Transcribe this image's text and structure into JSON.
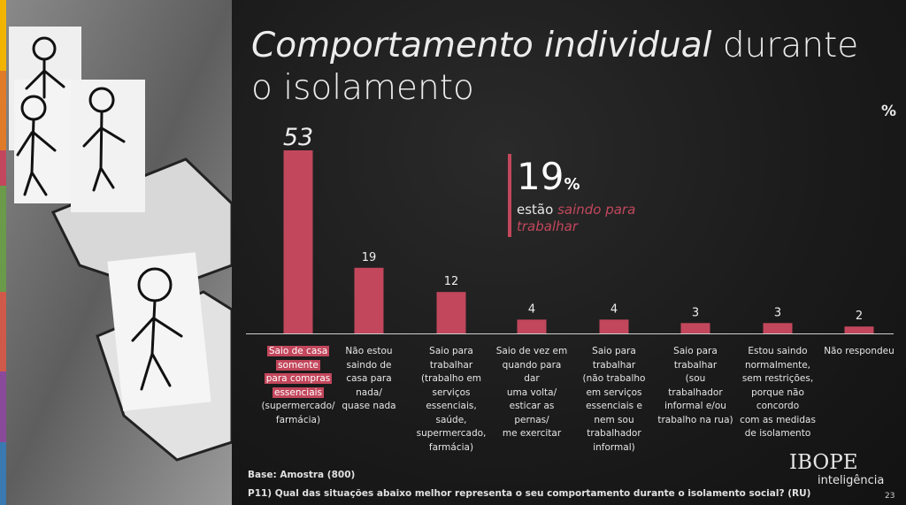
{
  "title": {
    "italic": "Comportamento individual",
    "rest": " durante o isolamento"
  },
  "unit_label": "%",
  "callout": {
    "value": "19",
    "unit": "%",
    "text_prefix": "estão ",
    "text_highlight": "saindo para trabalhar"
  },
  "base": "Base: Amostra (800)",
  "question": "P11) Qual das situações abaixo melhor representa o seu comportamento durante o isolamento social? (RU)",
  "logo": {
    "brand": "IBOPE",
    "sub": "inteligência"
  },
  "page_number": "23",
  "colors": {
    "bar": "#c2475c",
    "text": "#e6e6e6",
    "background": "#1a1a1a"
  },
  "categories": [
    {
      "highlight": [
        "Saio de casa",
        "somente",
        "para compras",
        "essenciais"
      ],
      "lines": [
        "(supermercado/",
        "farmácia)"
      ]
    },
    {
      "highlight": [],
      "lines": [
        "Não estou",
        "saindo de",
        "casa para",
        "nada/",
        "quase nada"
      ]
    },
    {
      "highlight": [],
      "lines": [
        "Saio para",
        "trabalhar",
        "(trabalho em",
        "serviços",
        "essenciais,",
        "saúde,",
        "supermercado,",
        "farmácia)"
      ]
    },
    {
      "highlight": [],
      "lines": [
        "Saio de vez em",
        "quando para dar",
        "uma volta/",
        "esticar as pernas/",
        "me exercitar"
      ]
    },
    {
      "highlight": [],
      "lines": [
        "Saio para",
        "trabalhar",
        "(não trabalho",
        "em serviços",
        "essenciais e",
        "nem sou",
        "trabalhador",
        "informal)"
      ]
    },
    {
      "highlight": [],
      "lines": [
        "Saio para",
        "trabalhar",
        "(sou trabalhador",
        "informal e/ou",
        "trabalho na rua)"
      ]
    },
    {
      "highlight": [],
      "lines": [
        "Estou saindo",
        "normalmente,",
        "sem restrições,",
        "porque não",
        "concordo",
        "com as medidas",
        "de isolamento"
      ]
    },
    {
      "highlight": [],
      "lines": [
        "Não respondeu"
      ]
    }
  ],
  "chart_data": {
    "type": "bar",
    "categories": [
      "Saio de casa somente para compras essenciais (supermercado/ farmácia)",
      "Não estou saindo de casa para nada/ quase nada",
      "Saio para trabalhar (trabalho em serviços essenciais, saúde, supermercado, farmácia)",
      "Saio de vez em quando para dar uma volta/ esticar as pernas/ me exercitar",
      "Saio para trabalhar (não trabalho em serviços essenciais e nem sou trabalhador informal)",
      "Saio para trabalhar (sou trabalhador informal e/ou trabalho na rua)",
      "Estou saindo normalmente, sem restrições, porque não concordo com as medidas de isolamento",
      "Não respondeu"
    ],
    "values": [
      53,
      19,
      12,
      4,
      4,
      3,
      3,
      2
    ],
    "ylabel": "%",
    "ylim": [
      0,
      53
    ],
    "grid": false
  }
}
